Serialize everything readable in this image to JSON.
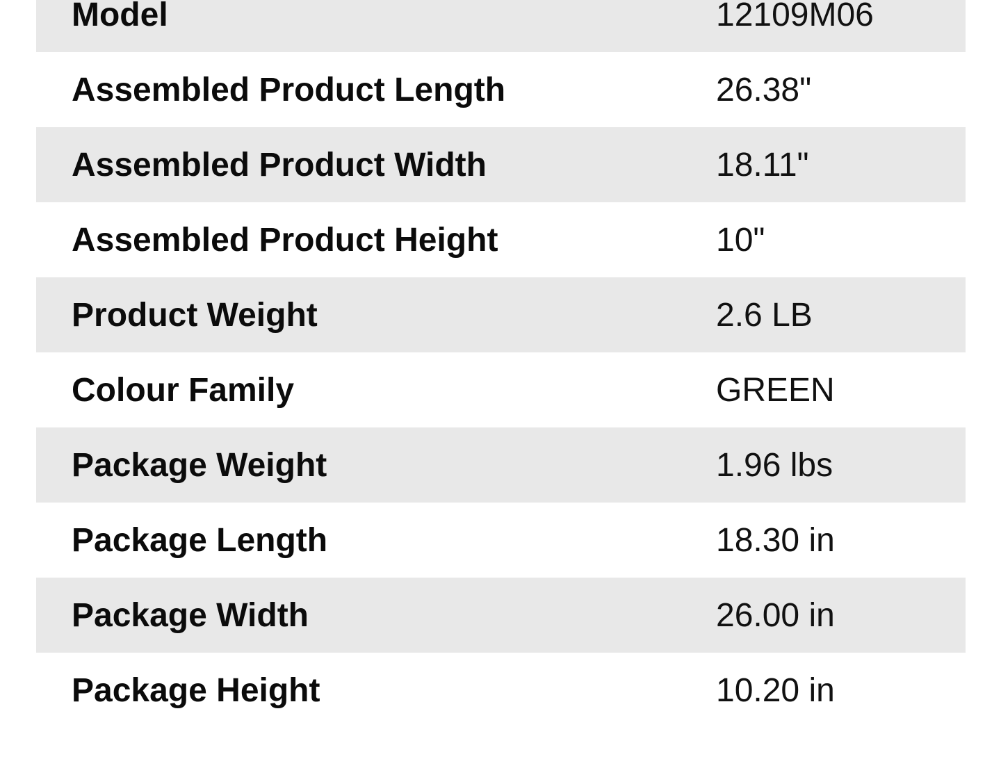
{
  "specifications": {
    "rows": [
      {
        "label": "Model",
        "value": "12109M06"
      },
      {
        "label": "Assembled Product Length",
        "value": "26.38\""
      },
      {
        "label": "Assembled Product Width",
        "value": "18.11\""
      },
      {
        "label": "Assembled Product Height",
        "value": "10\""
      },
      {
        "label": "Product Weight",
        "value": "2.6 LB"
      },
      {
        "label": "Colour Family",
        "value": "GREEN"
      },
      {
        "label": "Package Weight",
        "value": "1.96 lbs"
      },
      {
        "label": "Package Length",
        "value": "18.30 in"
      },
      {
        "label": "Package Width",
        "value": "26.00 in"
      },
      {
        "label": "Package Height",
        "value": "10.20 in"
      }
    ],
    "colors": {
      "stripe": "#e8e8e8",
      "background": "#ffffff",
      "text": "#0b0b0b"
    }
  }
}
